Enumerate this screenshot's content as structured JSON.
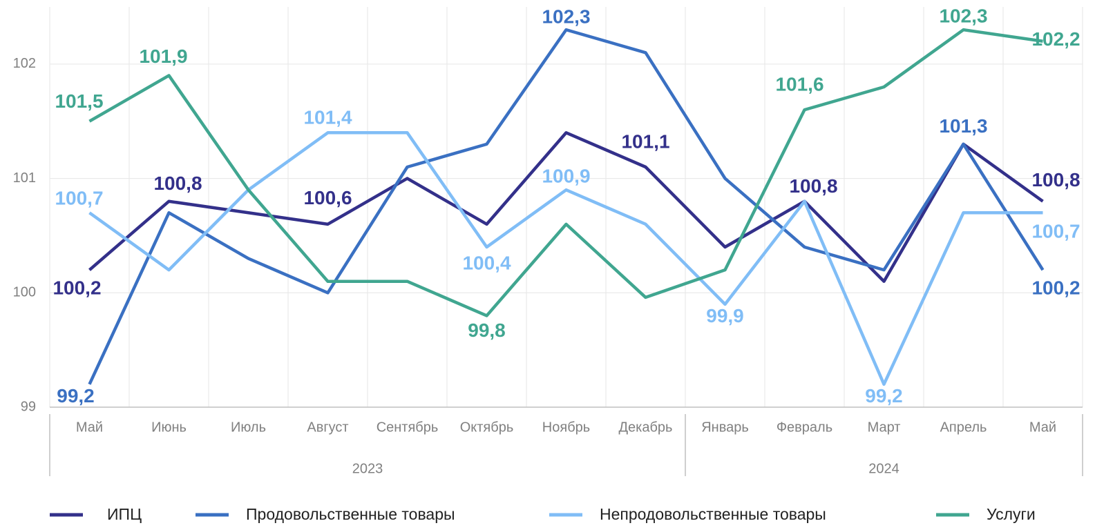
{
  "chart_data": {
    "type": "line",
    "categories": [
      "Май",
      "Июнь",
      "Июль",
      "Август",
      "Сентябрь",
      "Октябрь",
      "Ноябрь",
      "Декабрь",
      "Январь",
      "Февраль",
      "Март",
      "Апрель",
      "Май"
    ],
    "category_groups": [
      {
        "label": "2023",
        "span": 8
      },
      {
        "label": "2024",
        "span": 5
      }
    ],
    "ylim": [
      99,
      102.5
    ],
    "yticks": [
      99,
      100,
      101,
      102
    ],
    "grid": true,
    "series": [
      {
        "name": "ИПЦ",
        "color": "#33308a",
        "values": [
          100.2,
          100.8,
          100.7,
          100.6,
          101.0,
          100.6,
          101.4,
          101.1,
          100.4,
          100.8,
          100.1,
          101.3,
          100.8
        ],
        "value_labels": [
          "100,2",
          "100,8",
          null,
          "100,6",
          null,
          null,
          null,
          "101,1",
          null,
          "100,8",
          null,
          null,
          "100,8"
        ]
      },
      {
        "name": "Продовольственные товары",
        "color": "#3a70c2",
        "values": [
          99.2,
          100.7,
          100.3,
          100.0,
          101.1,
          101.3,
          102.3,
          102.1,
          101.0,
          100.4,
          100.2,
          101.3,
          100.2
        ],
        "value_labels": [
          "99,2",
          null,
          null,
          null,
          null,
          null,
          "102,3",
          null,
          null,
          null,
          null,
          "101,3",
          "100,2"
        ]
      },
      {
        "name": "Непродовольственные товары",
        "color": "#80bdf6",
        "values": [
          100.7,
          100.2,
          100.9,
          101.4,
          101.4,
          100.4,
          100.9,
          100.6,
          99.9,
          100.8,
          99.2,
          100.7,
          100.7
        ],
        "value_labels": [
          "100,7",
          null,
          null,
          "101,4",
          null,
          "100,4",
          "100,9",
          null,
          "99,9",
          null,
          "99,2",
          null,
          "100,7"
        ]
      },
      {
        "name": "Услуги",
        "color": "#40a690",
        "values": [
          101.5,
          101.9,
          100.9,
          100.1,
          100.1,
          99.8,
          100.6,
          99.96,
          100.2,
          101.6,
          101.8,
          102.3,
          102.2
        ],
        "value_labels": [
          "101,5",
          "101,9",
          null,
          null,
          null,
          "99,8",
          null,
          null,
          null,
          "101,6",
          null,
          "102,3",
          "102,2"
        ]
      }
    ]
  }
}
